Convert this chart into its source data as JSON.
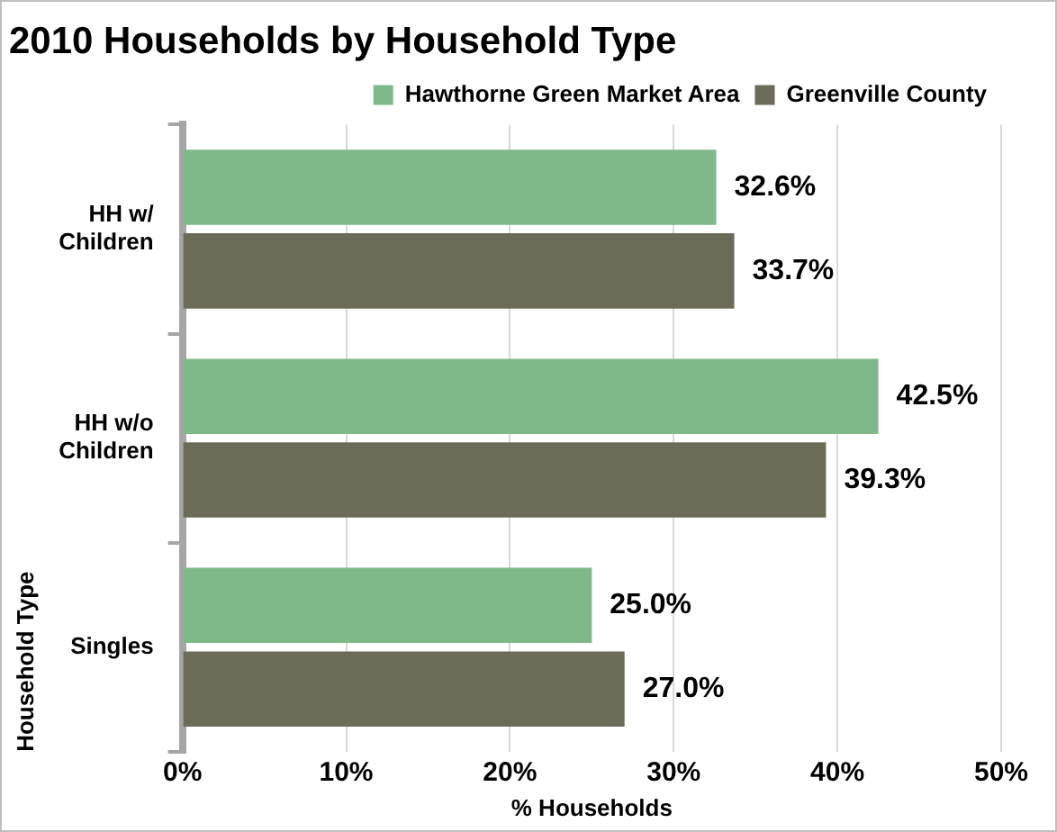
{
  "chart_data": {
    "type": "bar",
    "orientation": "horizontal",
    "title": "2010 Households by Household Type",
    "xlabel": "% Households",
    "ylabel": "Household Type",
    "categories": [
      "HH w/ Children",
      "HH w/o Children",
      "Singles"
    ],
    "series": [
      {
        "name": "Hawthorne Green Market Area",
        "color": "#7fb98a",
        "values": [
          32.6,
          42.5,
          25.0
        ],
        "value_labels": [
          "32.6%",
          "42.5%",
          "25.0%"
        ]
      },
      {
        "name": "Greenville County",
        "color": "#6b6b58",
        "values": [
          33.7,
          39.3,
          27.0
        ],
        "value_labels": [
          "33.7%",
          "39.3%",
          "27.0%"
        ]
      }
    ],
    "xlim": [
      0,
      50
    ],
    "xticks": [
      {
        "value": 0,
        "label": "0%"
      },
      {
        "value": 10,
        "label": "10%"
      },
      {
        "value": 20,
        "label": "20%"
      },
      {
        "value": 30,
        "label": "30%"
      },
      {
        "value": 40,
        "label": "40%"
      },
      {
        "value": 50,
        "label": "50%"
      }
    ],
    "grid": "x",
    "legend": "top right"
  }
}
